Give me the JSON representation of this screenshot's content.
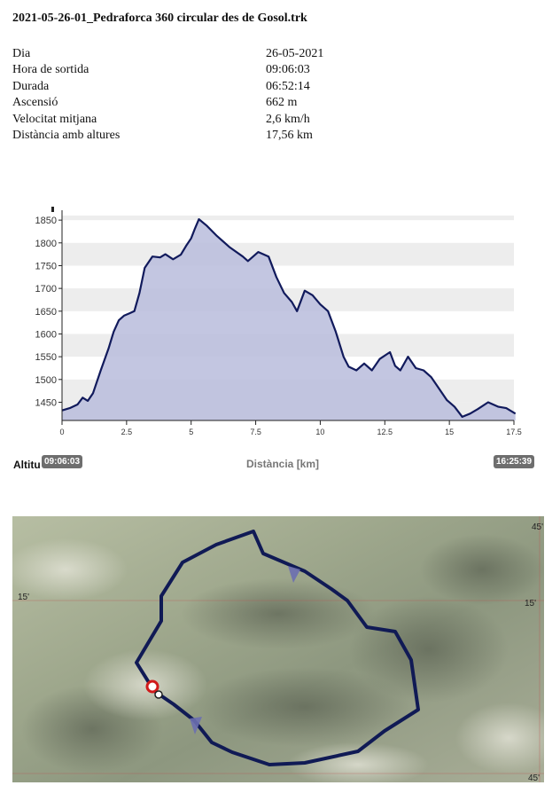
{
  "page": {
    "title": "2021-05-26-01_Pedraforca 360 circular des de Gosol.trk"
  },
  "stats": [
    {
      "label": "Dia",
      "value": "26-05-2021"
    },
    {
      "label": "Hora de sortida",
      "value": "09:06:03"
    },
    {
      "label": "Durada",
      "value": "06:52:14"
    },
    {
      "label": "Ascensió",
      "value": "662 m"
    },
    {
      "label": "Velocitat mitjana",
      "value": "2,6 km/h"
    },
    {
      "label": "Distància amb altures",
      "value": "17,56 km"
    }
  ],
  "chart": {
    "xlabel": "Distància [km]",
    "ylabel_visible": "Altitu",
    "start_time": "09:06:03",
    "end_time": "16:25:39"
  },
  "chart_data": {
    "type": "area",
    "xlabel": "Distància [km]",
    "ylabel": "Altitu",
    "xlim": [
      0,
      17.5
    ],
    "ylim": [
      1410,
      1860
    ],
    "xticks": [
      0,
      2.5,
      5,
      7.5,
      10,
      12.5,
      15,
      17.5
    ],
    "xtick_labels": [
      "0",
      "2.5",
      "5",
      "7.5",
      "10",
      "12.5",
      "15",
      "17.5"
    ],
    "yticks": [
      1450,
      1500,
      1550,
      1600,
      1650,
      1700,
      1750,
      1800,
      1850
    ],
    "grid": "horizontal bands",
    "series": [
      {
        "x": [
          0,
          0.3,
          0.6,
          0.8,
          1.0,
          1.2,
          1.5,
          1.8,
          2.0,
          2.2,
          2.4,
          2.6,
          2.8,
          3.0,
          3.2,
          3.5,
          3.8,
          4.0,
          4.3,
          4.6,
          4.8,
          5.0,
          5.15,
          5.3,
          5.6,
          6.0,
          6.5,
          7.0,
          7.2,
          7.6,
          8.0,
          8.3,
          8.6,
          8.9,
          9.1,
          9.4,
          9.7,
          10.0,
          10.3,
          10.6,
          10.9,
          11.1,
          11.4,
          11.7,
          12.0,
          12.3,
          12.7,
          12.9,
          13.1,
          13.4,
          13.7,
          14.0,
          14.3,
          14.6,
          14.9,
          15.2,
          15.5,
          15.8,
          16.1,
          16.5,
          16.9,
          17.2,
          17.56
        ],
        "values": [
          1432,
          1437,
          1445,
          1460,
          1453,
          1470,
          1520,
          1568,
          1605,
          1630,
          1640,
          1645,
          1650,
          1690,
          1745,
          1770,
          1768,
          1775,
          1764,
          1774,
          1793,
          1810,
          1832,
          1852,
          1838,
          1815,
          1790,
          1770,
          1760,
          1780,
          1770,
          1725,
          1690,
          1670,
          1650,
          1695,
          1685,
          1665,
          1650,
          1605,
          1550,
          1528,
          1520,
          1535,
          1520,
          1545,
          1560,
          1530,
          1520,
          1550,
          1525,
          1520,
          1505,
          1480,
          1455,
          1440,
          1418,
          1425,
          1435,
          1450,
          1440,
          1437,
          1425
        ]
      }
    ]
  },
  "map": {
    "grid_label_top_right": "45'",
    "grid_label_left": "15'",
    "grid_label_right": "15'",
    "grid_label_bottom_right": "45'"
  }
}
